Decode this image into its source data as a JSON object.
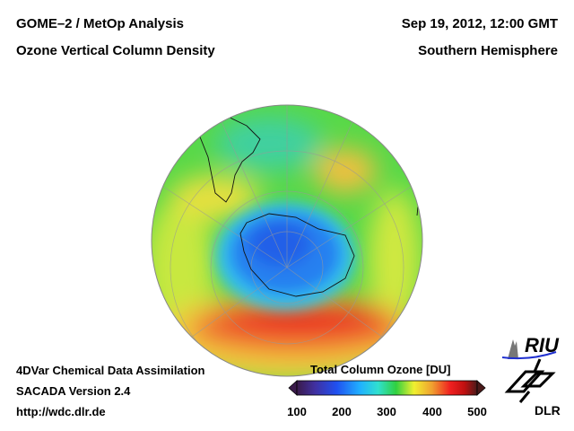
{
  "header": {
    "title_left_1": "GOME–2 / MetOp Analysis",
    "title_left_2": "Ozone Vertical Column Density",
    "title_right_1": "Sep 19, 2012, 12:00 GMT",
    "title_right_2": "Southern Hemisphere"
  },
  "footer": {
    "line1": "4DVar Chemical Data Assimilation",
    "line2": "SACADA Version 2.4",
    "line3": "http://wdc.dlr.de"
  },
  "colorbar": {
    "title": "Total Column Ozone [DU]",
    "ticks": [
      "100",
      "200",
      "300",
      "400",
      "500"
    ],
    "range": [
      100,
      500
    ],
    "colors": [
      "#3a1a4a",
      "#2050e0",
      "#20a0ff",
      "#30e0e0",
      "#30d040",
      "#f0f030",
      "#f0a030",
      "#f02020",
      "#c01010",
      "#5a1a1a"
    ]
  },
  "logos": {
    "riu": "RIU",
    "dlr": "DLR"
  }
}
